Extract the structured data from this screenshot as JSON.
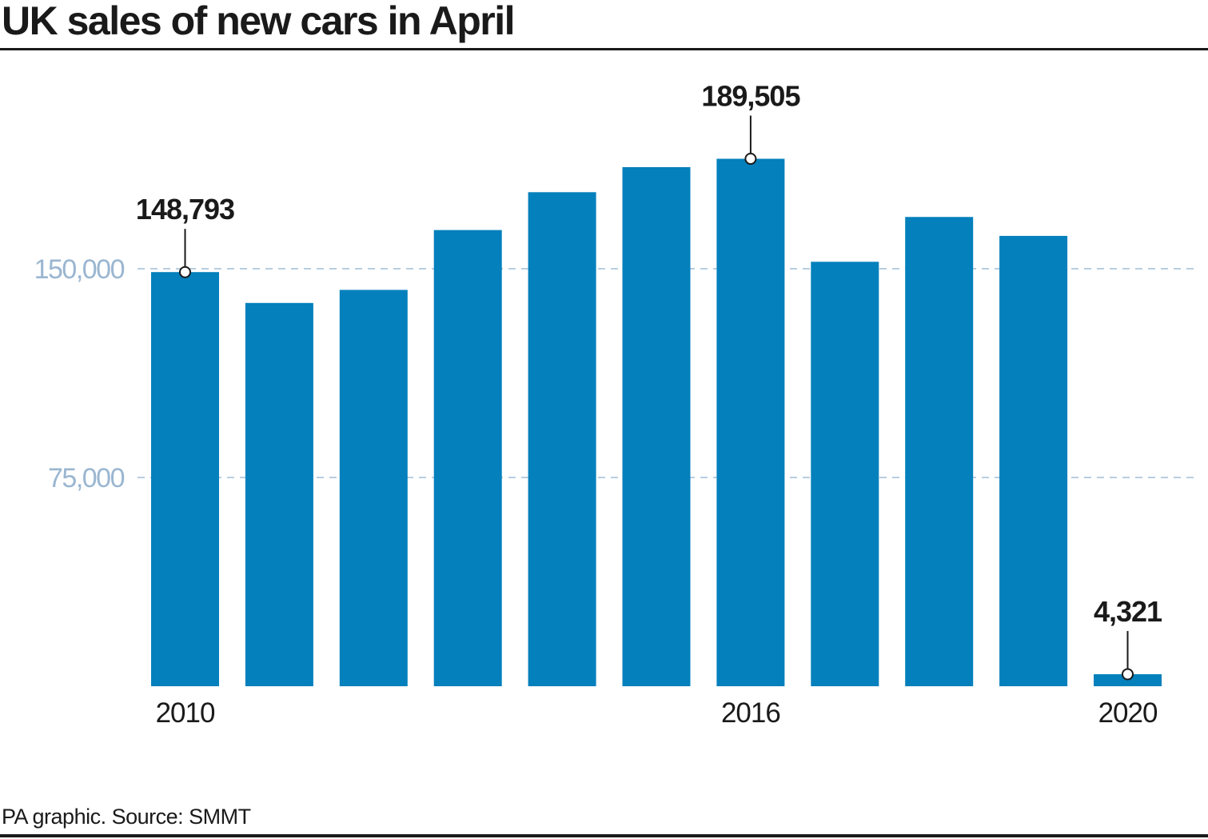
{
  "chart_data": {
    "type": "bar",
    "title": "UK sales of new cars in April",
    "categories": [
      "2010",
      "2011",
      "2012",
      "2013",
      "2014",
      "2015",
      "2016",
      "2017",
      "2018",
      "2019",
      "2020"
    ],
    "values": [
      148793,
      137700,
      142400,
      163900,
      177500,
      186500,
      189505,
      152500,
      168600,
      161800,
      4321
    ],
    "ylim": [
      0,
      200000
    ],
    "yticks": [
      75000,
      150000
    ],
    "ytick_labels": [
      "75,000",
      "150,000"
    ],
    "xtick_labels": [
      {
        "index": 0,
        "label": "2010"
      },
      {
        "index": 6,
        "label": "2016"
      },
      {
        "index": 10,
        "label": "2020"
      }
    ],
    "annotations": [
      {
        "index": 0,
        "label": "148,793"
      },
      {
        "index": 6,
        "label": "189,505"
      },
      {
        "index": 10,
        "label": "4,321"
      }
    ],
    "grid": true,
    "colors": {
      "bar": "#0480bc",
      "gridline": "#9fbed6",
      "ytick_text": "#9ab6d1",
      "text": "#1a1a1a"
    }
  },
  "footer": {
    "source": "PA graphic. Source: SMMT"
  }
}
